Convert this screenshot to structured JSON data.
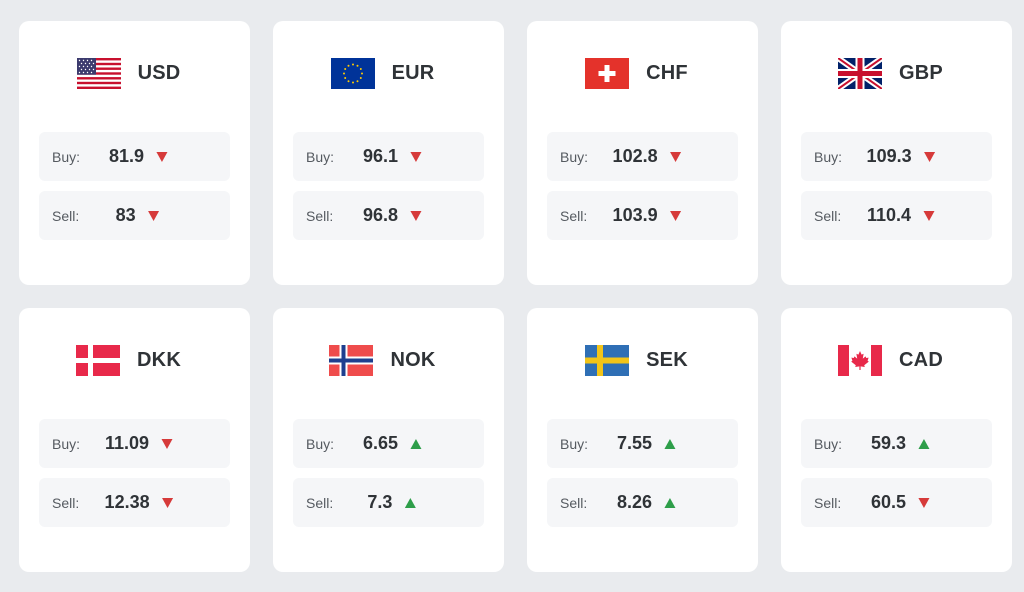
{
  "labels": {
    "buy": "Buy:",
    "sell": "Sell:"
  },
  "colors": {
    "up": "#2e9e4a",
    "down": "#d63a3a",
    "background": "#e9ebee",
    "card": "#ffffff",
    "row": "#f5f6f8"
  },
  "currencies": [
    {
      "code": "USD",
      "flag": "usa-flag-icon",
      "buy": "81.9",
      "buy_trend": "down",
      "sell": "83",
      "sell_trend": "down"
    },
    {
      "code": "EUR",
      "flag": "eu-flag-icon",
      "buy": "96.1",
      "buy_trend": "down",
      "sell": "96.8",
      "sell_trend": "down"
    },
    {
      "code": "CHF",
      "flag": "swiss-flag-icon",
      "buy": "102.8",
      "buy_trend": "down",
      "sell": "103.9",
      "sell_trend": "down"
    },
    {
      "code": "GBP",
      "flag": "uk-flag-icon",
      "buy": "109.3",
      "buy_trend": "down",
      "sell": "110.4",
      "sell_trend": "down"
    },
    {
      "code": "DKK",
      "flag": "denmark-flag-icon",
      "buy": "11.09",
      "buy_trend": "down",
      "sell": "12.38",
      "sell_trend": "down"
    },
    {
      "code": "NOK",
      "flag": "norway-flag-icon",
      "buy": "6.65",
      "buy_trend": "up",
      "sell": "7.3",
      "sell_trend": "up"
    },
    {
      "code": "SEK",
      "flag": "sweden-flag-icon",
      "buy": "7.55",
      "buy_trend": "up",
      "sell": "8.26",
      "sell_trend": "up"
    },
    {
      "code": "CAD",
      "flag": "canada-flag-icon",
      "buy": "59.3",
      "buy_trend": "up",
      "sell": "60.5",
      "sell_trend": "down"
    }
  ]
}
